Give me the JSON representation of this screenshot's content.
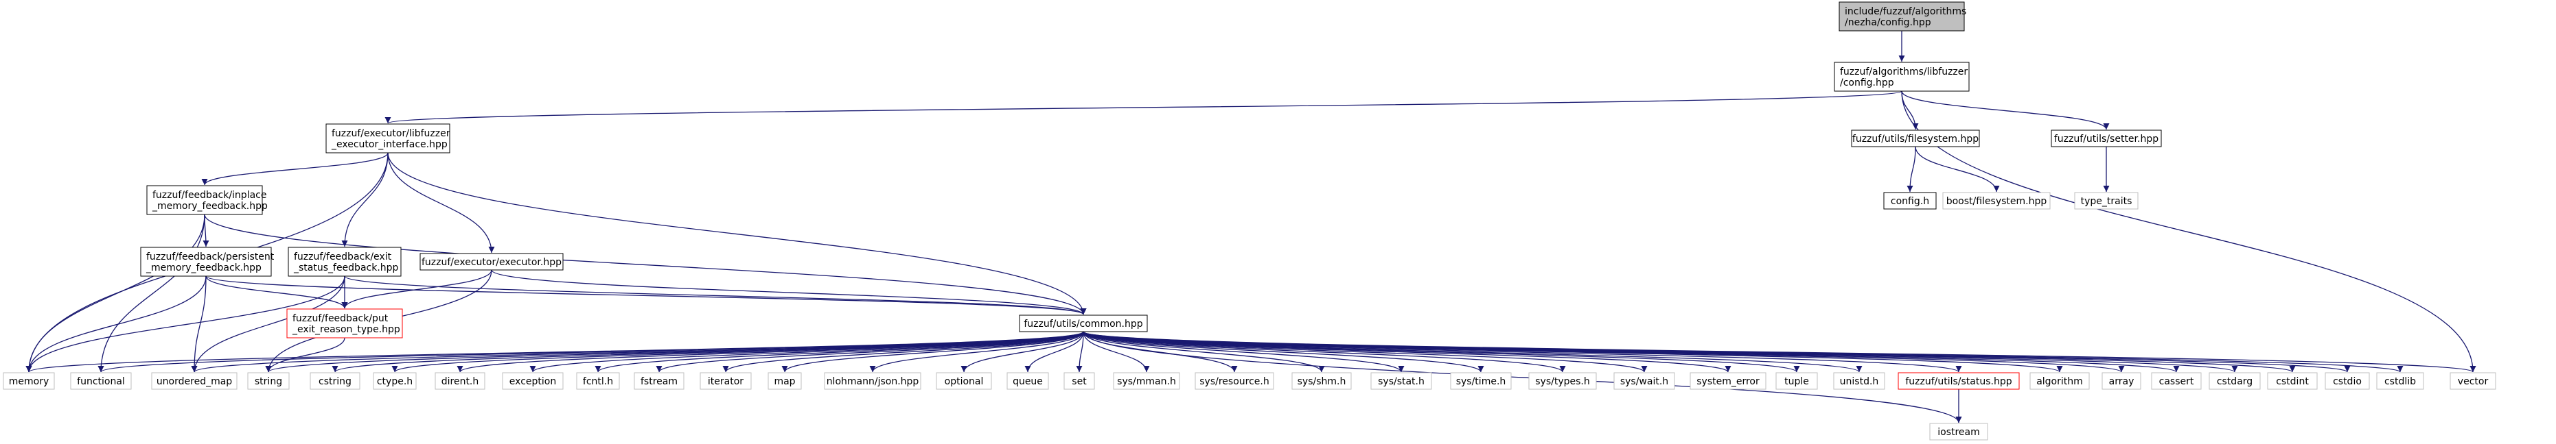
{
  "graph": {
    "colors": {
      "edge": "#191970",
      "root_fill": "#bfbfbf",
      "documented_border": "#000000",
      "external_border": "#bfbfbf",
      "incomplete_border": "#ff0000",
      "box_fill": "#ffffff"
    },
    "nodes": [
      {
        "id": "root",
        "kind": "root",
        "lines": [
          "include/fuzzuf/algorithms",
          "/nezha/config.hpp"
        ]
      },
      {
        "id": "libfuzzer_config",
        "kind": "documented",
        "lines": [
          "fuzzuf/algorithms/libfuzzer",
          "/config.hpp"
        ]
      },
      {
        "id": "executor_interface",
        "kind": "documented",
        "lines": [
          "fuzzuf/executor/libfuzzer",
          "_executor_interface.hpp"
        ]
      },
      {
        "id": "filesystem",
        "kind": "documented",
        "lines": [
          "fuzzuf/utils/filesystem.hpp"
        ]
      },
      {
        "id": "setter",
        "kind": "documented",
        "lines": [
          "fuzzuf/utils/setter.hpp"
        ]
      },
      {
        "id": "config_h",
        "kind": "documented",
        "lines": [
          "config.h"
        ]
      },
      {
        "id": "boost_fs",
        "kind": "external",
        "lines": [
          "boost/filesystem.hpp"
        ]
      },
      {
        "id": "type_traits",
        "kind": "external",
        "lines": [
          "type_traits"
        ]
      },
      {
        "id": "inplace",
        "kind": "documented",
        "lines": [
          "fuzzuf/feedback/inplace",
          "_memory_feedback.hpp"
        ]
      },
      {
        "id": "persistent",
        "kind": "documented",
        "lines": [
          "fuzzuf/feedback/persistent",
          "_memory_feedback.hpp"
        ]
      },
      {
        "id": "exit_status",
        "kind": "documented",
        "lines": [
          "fuzzuf/feedback/exit",
          "_status_feedback.hpp"
        ]
      },
      {
        "id": "executor",
        "kind": "documented",
        "lines": [
          "fuzzuf/executor/executor.hpp"
        ]
      },
      {
        "id": "put_exit",
        "kind": "incomplete",
        "lines": [
          "fuzzuf/feedback/put",
          "_exit_reason_type.hpp"
        ]
      },
      {
        "id": "common",
        "kind": "documented",
        "lines": [
          "fuzzuf/utils/common.hpp"
        ]
      },
      {
        "id": "memory",
        "kind": "external",
        "lines": [
          "memory"
        ]
      },
      {
        "id": "functional",
        "kind": "external",
        "lines": [
          "functional"
        ]
      },
      {
        "id": "unordered_map",
        "kind": "external",
        "lines": [
          "unordered_map"
        ]
      },
      {
        "id": "string",
        "kind": "external",
        "lines": [
          "string"
        ]
      },
      {
        "id": "cstring",
        "kind": "external",
        "lines": [
          "cstring"
        ]
      },
      {
        "id": "ctype_h",
        "kind": "external",
        "lines": [
          "ctype.h"
        ]
      },
      {
        "id": "dirent_h",
        "kind": "external",
        "lines": [
          "dirent.h"
        ]
      },
      {
        "id": "exception",
        "kind": "external",
        "lines": [
          "exception"
        ]
      },
      {
        "id": "fcntl_h",
        "kind": "external",
        "lines": [
          "fcntl.h"
        ]
      },
      {
        "id": "fstream",
        "kind": "external",
        "lines": [
          "fstream"
        ]
      },
      {
        "id": "iterator",
        "kind": "external",
        "lines": [
          "iterator"
        ]
      },
      {
        "id": "map",
        "kind": "external",
        "lines": [
          "map"
        ]
      },
      {
        "id": "json",
        "kind": "external",
        "lines": [
          "nlohmann/json.hpp"
        ]
      },
      {
        "id": "optional",
        "kind": "external",
        "lines": [
          "optional"
        ]
      },
      {
        "id": "queue",
        "kind": "external",
        "lines": [
          "queue"
        ]
      },
      {
        "id": "set",
        "kind": "external",
        "lines": [
          "set"
        ]
      },
      {
        "id": "mman",
        "kind": "external",
        "lines": [
          "sys/mman.h"
        ]
      },
      {
        "id": "resource",
        "kind": "external",
        "lines": [
          "sys/resource.h"
        ]
      },
      {
        "id": "shm",
        "kind": "external",
        "lines": [
          "sys/shm.h"
        ]
      },
      {
        "id": "stat",
        "kind": "external",
        "lines": [
          "sys/stat.h"
        ]
      },
      {
        "id": "time",
        "kind": "external",
        "lines": [
          "sys/time.h"
        ]
      },
      {
        "id": "types",
        "kind": "external",
        "lines": [
          "sys/types.h"
        ]
      },
      {
        "id": "wait",
        "kind": "external",
        "lines": [
          "sys/wait.h"
        ]
      },
      {
        "id": "system_error",
        "kind": "external",
        "lines": [
          "system_error"
        ]
      },
      {
        "id": "tuple",
        "kind": "external",
        "lines": [
          "tuple"
        ]
      },
      {
        "id": "unistd",
        "kind": "external",
        "lines": [
          "unistd.h"
        ]
      },
      {
        "id": "status",
        "kind": "incomplete",
        "lines": [
          "fuzzuf/utils/status.hpp"
        ]
      },
      {
        "id": "algorithm",
        "kind": "external",
        "lines": [
          "algorithm"
        ]
      },
      {
        "id": "array",
        "kind": "external",
        "lines": [
          "array"
        ]
      },
      {
        "id": "cassert",
        "kind": "external",
        "lines": [
          "cassert"
        ]
      },
      {
        "id": "cstdarg",
        "kind": "external",
        "lines": [
          "cstdarg"
        ]
      },
      {
        "id": "cstdint",
        "kind": "external",
        "lines": [
          "cstdint"
        ]
      },
      {
        "id": "cstdio",
        "kind": "external",
        "lines": [
          "cstdio"
        ]
      },
      {
        "id": "cstdlib",
        "kind": "external",
        "lines": [
          "cstdlib"
        ]
      },
      {
        "id": "vector",
        "kind": "external",
        "lines": [
          "vector"
        ]
      },
      {
        "id": "iostream",
        "kind": "external",
        "lines": [
          "iostream"
        ]
      }
    ],
    "edges": [
      [
        "root",
        "libfuzzer_config"
      ],
      [
        "libfuzzer_config",
        "executor_interface"
      ],
      [
        "libfuzzer_config",
        "filesystem"
      ],
      [
        "libfuzzer_config",
        "setter"
      ],
      [
        "libfuzzer_config",
        "vector"
      ],
      [
        "filesystem",
        "config_h"
      ],
      [
        "filesystem",
        "boost_fs"
      ],
      [
        "setter",
        "type_traits"
      ],
      [
        "executor_interface",
        "inplace"
      ],
      [
        "executor_interface",
        "exit_status"
      ],
      [
        "executor_interface",
        "executor"
      ],
      [
        "executor_interface",
        "common"
      ],
      [
        "executor_interface",
        "memory"
      ],
      [
        "inplace",
        "persistent"
      ],
      [
        "inplace",
        "common"
      ],
      [
        "inplace",
        "memory"
      ],
      [
        "inplace",
        "functional"
      ],
      [
        "persistent",
        "put_exit"
      ],
      [
        "persistent",
        "common"
      ],
      [
        "persistent",
        "memory"
      ],
      [
        "persistent",
        "unordered_map"
      ],
      [
        "exit_status",
        "put_exit"
      ],
      [
        "exit_status",
        "common"
      ],
      [
        "exit_status",
        "memory"
      ],
      [
        "exit_status",
        "unordered_map"
      ],
      [
        "executor",
        "put_exit"
      ],
      [
        "executor",
        "common"
      ],
      [
        "executor",
        "string"
      ],
      [
        "put_exit",
        "string"
      ],
      [
        "common",
        "memory"
      ],
      [
        "common",
        "functional"
      ],
      [
        "common",
        "unordered_map"
      ],
      [
        "common",
        "string"
      ],
      [
        "common",
        "cstring"
      ],
      [
        "common",
        "ctype_h"
      ],
      [
        "common",
        "dirent_h"
      ],
      [
        "common",
        "exception"
      ],
      [
        "common",
        "fcntl_h"
      ],
      [
        "common",
        "fstream"
      ],
      [
        "common",
        "iterator"
      ],
      [
        "common",
        "map"
      ],
      [
        "common",
        "json"
      ],
      [
        "common",
        "optional"
      ],
      [
        "common",
        "queue"
      ],
      [
        "common",
        "set"
      ],
      [
        "common",
        "mman"
      ],
      [
        "common",
        "resource"
      ],
      [
        "common",
        "shm"
      ],
      [
        "common",
        "stat"
      ],
      [
        "common",
        "time"
      ],
      [
        "common",
        "types"
      ],
      [
        "common",
        "wait"
      ],
      [
        "common",
        "system_error"
      ],
      [
        "common",
        "tuple"
      ],
      [
        "common",
        "unistd"
      ],
      [
        "common",
        "status"
      ],
      [
        "common",
        "algorithm"
      ],
      [
        "common",
        "array"
      ],
      [
        "common",
        "cassert"
      ],
      [
        "common",
        "cstdarg"
      ],
      [
        "common",
        "cstdint"
      ],
      [
        "common",
        "cstdio"
      ],
      [
        "common",
        "cstdlib"
      ],
      [
        "common",
        "vector"
      ],
      [
        "common",
        "iostream"
      ],
      [
        "status",
        "iostream"
      ]
    ]
  }
}
